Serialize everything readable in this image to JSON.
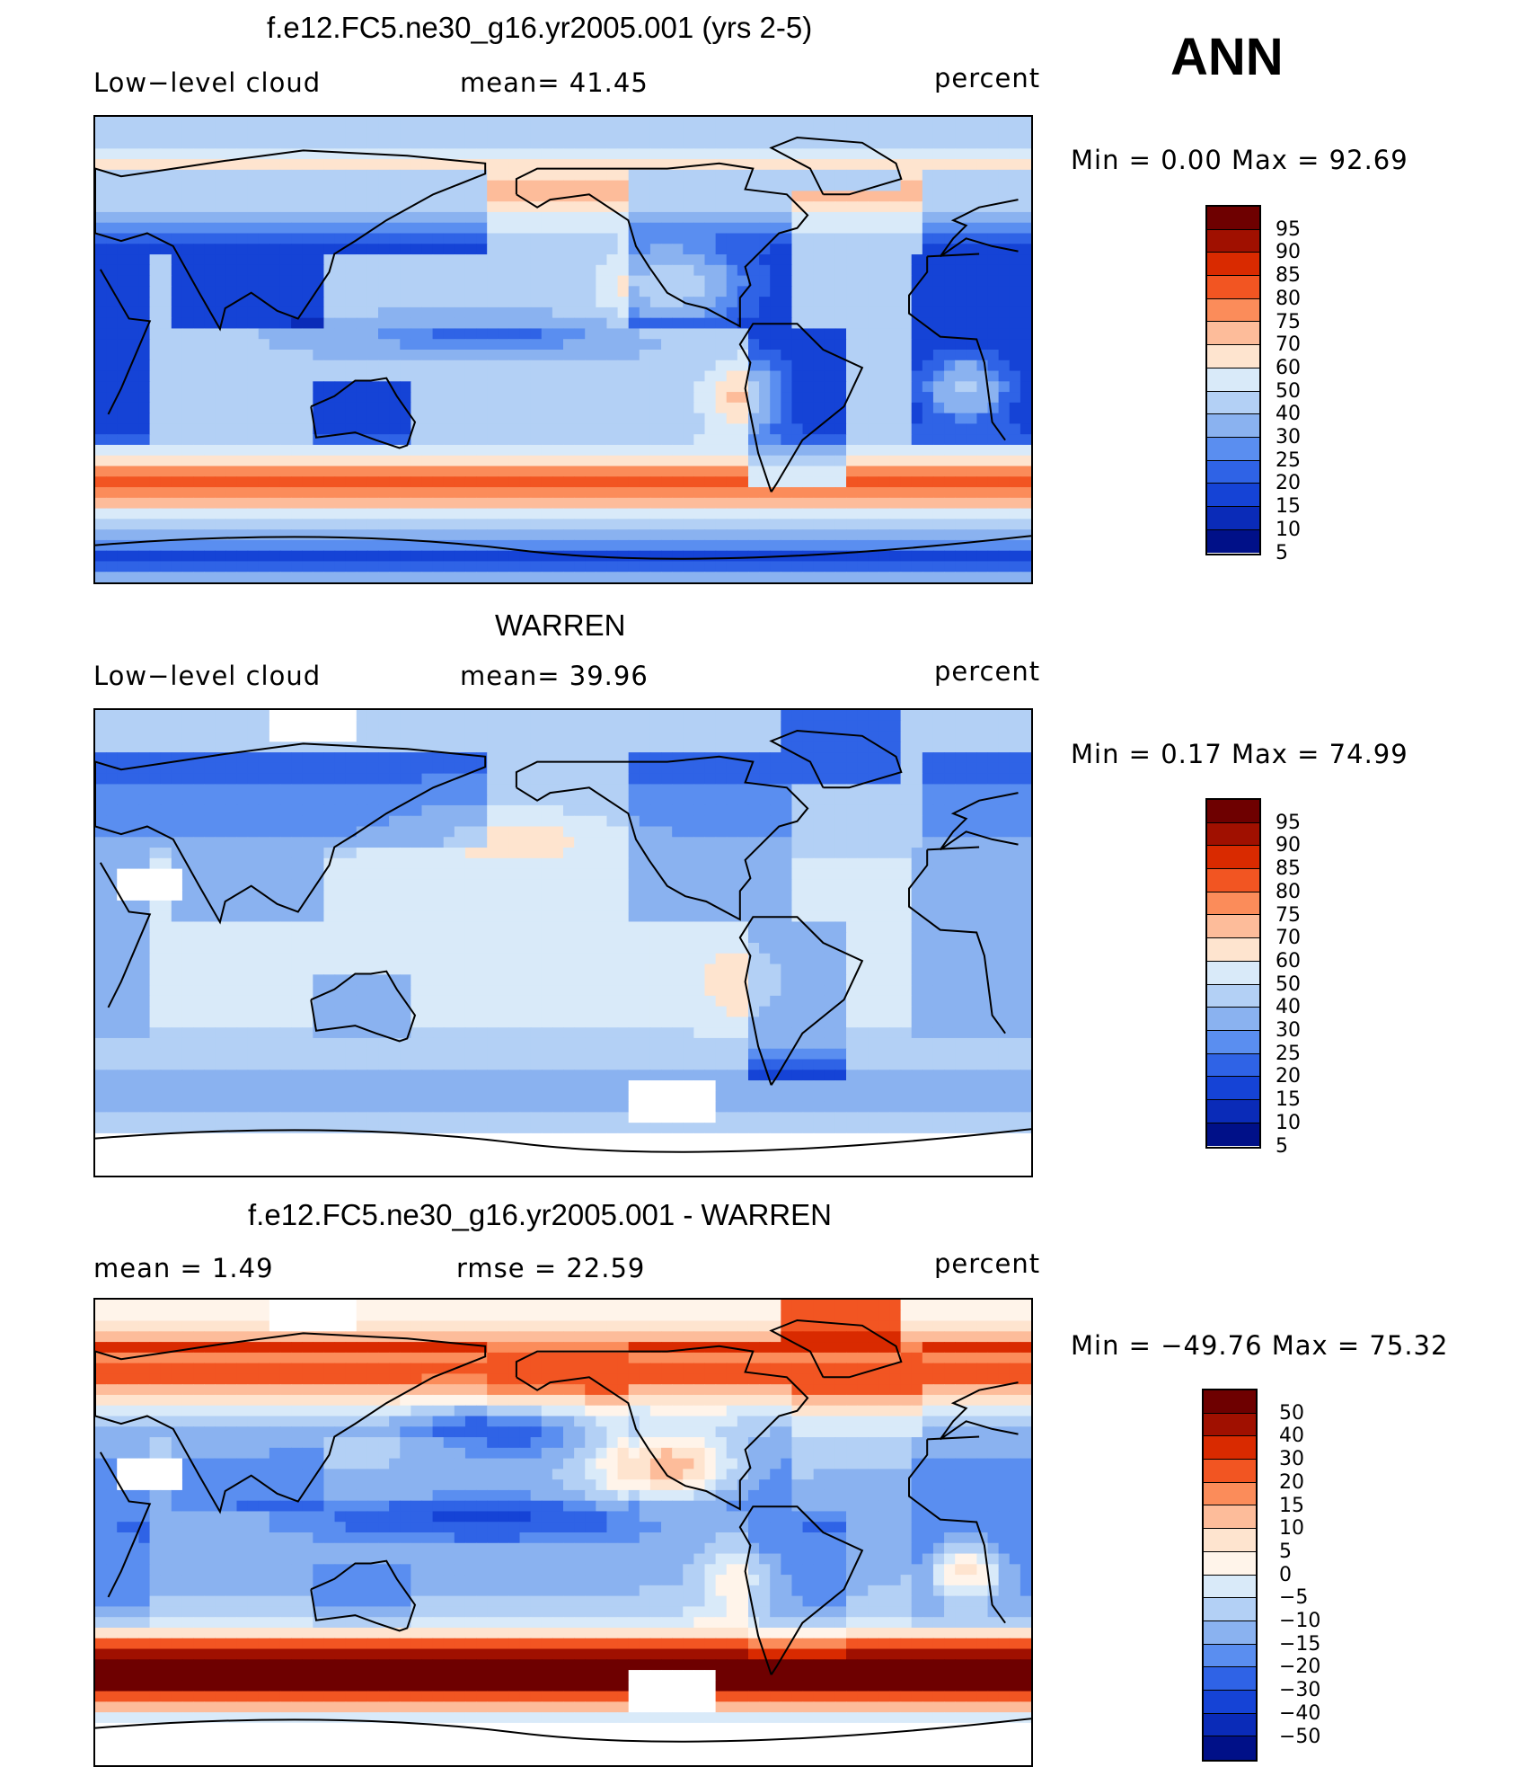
{
  "season": "ANN",
  "panels": [
    {
      "id": "model",
      "title": "f.e12.FC5.ne30_g16.yr2005.001 (yrs 2-5)",
      "left_label": "Low−level  cloud",
      "mid_label": "mean=   41.45",
      "right_label": "percent",
      "minmax": "Min  =     0.00  Max  =    92.69",
      "field": "model",
      "colorbar": {
        "labels": [
          "95",
          "90",
          "85",
          "80",
          "75",
          "70",
          "60",
          "50",
          "40",
          "30",
          "25",
          "20",
          "15",
          "10",
          "5"
        ],
        "colors": [
          "#6e0000",
          "#a01000",
          "#d92a00",
          "#f25522",
          "#fb8c5a",
          "#fdbc9a",
          "#fee4cf",
          "#d9eaf9",
          "#b3d0f5",
          "#8ab2f0",
          "#5a8ef0",
          "#2f63e6",
          "#1543d6",
          "#0a2bb8",
          "#001088"
        ]
      }
    },
    {
      "id": "obs",
      "title": "WARREN",
      "left_label": "Low−level  cloud",
      "mid_label": "mean=   39.96",
      "right_label": "percent",
      "minmax": "Min  =     0.17  Max  =    74.99",
      "field": "obs",
      "colorbar": {
        "labels": [
          "95",
          "90",
          "85",
          "80",
          "75",
          "70",
          "60",
          "50",
          "40",
          "30",
          "25",
          "20",
          "15",
          "10",
          "5"
        ],
        "colors": [
          "#6e0000",
          "#a01000",
          "#d92a00",
          "#f25522",
          "#fb8c5a",
          "#fdbc9a",
          "#fee4cf",
          "#d9eaf9",
          "#b3d0f5",
          "#8ab2f0",
          "#5a8ef0",
          "#2f63e6",
          "#1543d6",
          "#0a2bb8",
          "#001088"
        ]
      }
    },
    {
      "id": "diff",
      "title": "f.e12.FC5.ne30_g16.yr2005.001 - WARREN",
      "left_label": "mean  =     1.49",
      "mid_label": "rmse  =    22.59",
      "right_label": "percent",
      "minmax": "Min  =  −49.76  Max  =    75.32",
      "field": "diff",
      "colorbar": {
        "labels": [
          "50",
          "40",
          "30",
          "20",
          "15",
          "10",
          "5",
          "0",
          "−5",
          "−10",
          "−15",
          "−20",
          "−30",
          "−40",
          "−50"
        ],
        "colors": [
          "#6e0000",
          "#a01000",
          "#d92a00",
          "#f25522",
          "#fb8c5a",
          "#fdbc9a",
          "#fee4cf",
          "#fff4ea",
          "#d9eaf9",
          "#b3d0f5",
          "#8ab2f0",
          "#5a8ef0",
          "#2f63e6",
          "#1543d6",
          "#0a2bb8",
          "#001088"
        ]
      }
    }
  ]
}
